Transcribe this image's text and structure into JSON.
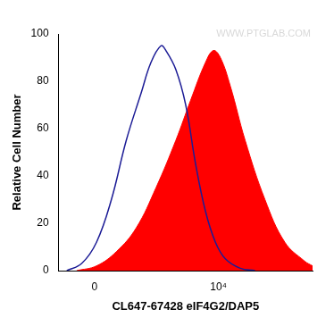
{
  "chart_data": {
    "type": "line",
    "xlabel": "CL647-67428 eIF4G2/DAP5",
    "ylabel": "Relative Cell Number",
    "annotations": [
      "WWW.PTGLAB.COM"
    ],
    "xlim": [
      -2900,
      17600
    ],
    "xticks": [
      0,
      {
        "value": 10000,
        "label": "10⁴"
      }
    ],
    "ylim": [
      0,
      100
    ],
    "yticks": [
      0,
      20,
      40,
      60,
      80,
      100
    ],
    "grid": false,
    "series": [
      {
        "type": "line",
        "color": "#1c1c96",
        "x": [
          -2240,
          -1040,
          160,
          1360,
          2560,
          3760,
          4560,
          5360,
          5760,
          6560,
          7360,
          8160,
          8960,
          9760,
          10560,
          11760,
          12960
        ],
        "values": [
          0,
          3,
          12,
          30,
          55,
          75,
          88,
          95,
          93,
          85,
          70,
          45,
          25,
          12,
          5,
          1,
          0
        ]
      },
      {
        "type": "area",
        "color": "#ff0000",
        "x": [
          -1440,
          160,
          1760,
          3360,
          4960,
          6560,
          7760,
          8960,
          9600,
          10160,
          10960,
          12160,
          13760,
          15360,
          16960,
          17600
        ],
        "values": [
          0,
          2,
          8,
          18,
          35,
          55,
          72,
          88,
          93,
          90,
          78,
          55,
          30,
          12,
          4,
          2
        ]
      }
    ]
  }
}
